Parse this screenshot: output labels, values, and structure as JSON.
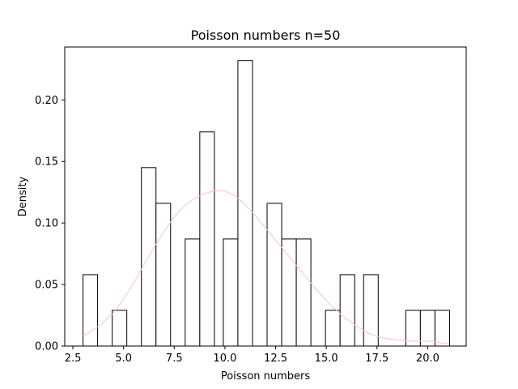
{
  "chart_data": {
    "type": "bar",
    "title": "Poisson numbers n=50",
    "xlabel": "Poisson numbers",
    "ylabel": "Density",
    "xlim": [
      2.1,
      21.9
    ],
    "ylim": [
      0.0,
      0.243
    ],
    "xticks": [
      2.5,
      5.0,
      7.5,
      10.0,
      12.5,
      15.0,
      17.5,
      20.0
    ],
    "xtick_labels": [
      "2.5",
      "5.0",
      "7.5",
      "10.0",
      "12.5",
      "15.0",
      "17.5",
      "20.0"
    ],
    "yticks": [
      0.0,
      0.05,
      0.1,
      0.15,
      0.2
    ],
    "ytick_labels": [
      "0.00",
      "0.05",
      "0.10",
      "0.15",
      "0.20"
    ],
    "grid": false,
    "legend": "none",
    "bar_color": "#ffffff",
    "bar_edge_color": "#000000",
    "histogram_bins": [
      {
        "x0": 3.0,
        "x1": 3.72,
        "value": 0.058
      },
      {
        "x0": 4.44,
        "x1": 5.16,
        "value": 0.029
      },
      {
        "x0": 5.88,
        "x1": 6.6,
        "value": 0.145
      },
      {
        "x0": 6.6,
        "x1": 7.32,
        "value": 0.116
      },
      {
        "x0": 8.04,
        "x1": 8.76,
        "value": 0.087
      },
      {
        "x0": 8.76,
        "x1": 9.48,
        "value": 0.174
      },
      {
        "x0": 9.92,
        "x1": 10.64,
        "value": 0.087
      },
      {
        "x0": 10.64,
        "x1": 11.36,
        "value": 0.232
      },
      {
        "x0": 12.08,
        "x1": 12.8,
        "value": 0.116
      },
      {
        "x0": 12.8,
        "x1": 13.52,
        "value": 0.087
      },
      {
        "x0": 13.52,
        "x1": 14.24,
        "value": 0.087
      },
      {
        "x0": 14.96,
        "x1": 15.68,
        "value": 0.029
      },
      {
        "x0": 15.68,
        "x1": 16.4,
        "value": 0.058
      },
      {
        "x0": 16.84,
        "x1": 17.56,
        "value": 0.058
      },
      {
        "x0": 18.92,
        "x1": 19.64,
        "value": 0.029
      },
      {
        "x0": 19.64,
        "x1": 20.36,
        "value": 0.029
      },
      {
        "x0": 20.36,
        "x1": 21.08,
        "value": 0.029
      }
    ],
    "curve": {
      "color": "#ffc0cb",
      "x": [
        3.0,
        3.5,
        4.0,
        4.5,
        5.0,
        5.5,
        6.0,
        6.5,
        7.0,
        7.5,
        8.0,
        8.5,
        9.0,
        9.5,
        10.0,
        10.5,
        11.0,
        11.5,
        12.0,
        12.5,
        13.0,
        13.5,
        14.0,
        14.5,
        15.0,
        15.5,
        16.0,
        16.5,
        17.0,
        17.5,
        18.0,
        18.5,
        19.0,
        19.5,
        20.0,
        20.5,
        21.0
      ],
      "y": [
        0.008,
        0.013,
        0.019,
        0.027,
        0.038,
        0.051,
        0.066,
        0.08,
        0.093,
        0.105,
        0.114,
        0.12,
        0.124,
        0.126,
        0.126,
        0.122,
        0.115,
        0.106,
        0.096,
        0.086,
        0.076,
        0.066,
        0.056,
        0.046,
        0.037,
        0.029,
        0.022,
        0.016,
        0.011,
        0.008,
        0.006,
        0.005,
        0.004,
        0.004,
        0.004,
        0.003,
        0.002
      ]
    }
  }
}
